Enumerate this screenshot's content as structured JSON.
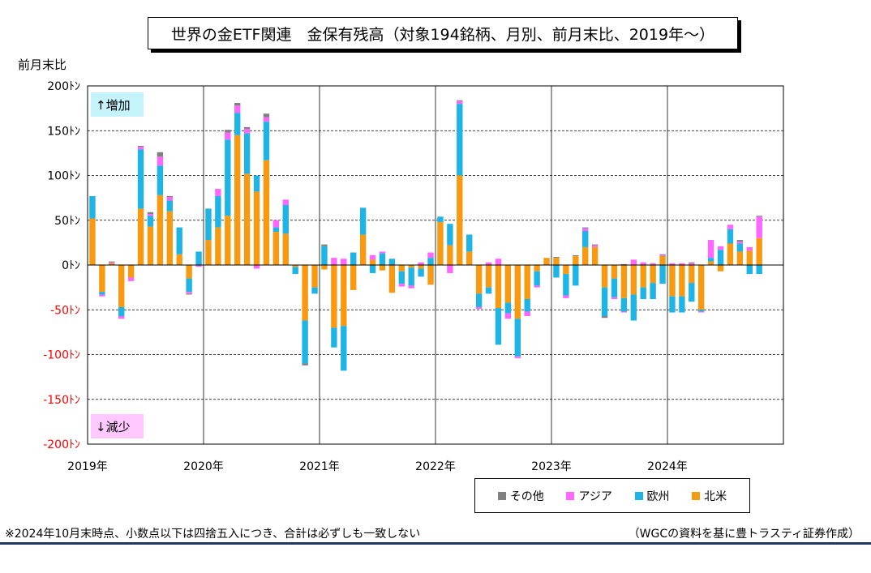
{
  "header": {
    "title": "世界の金ETF関連　金保有残高（対象194銘柄、月別、前月末比、2019年～）",
    "unit_label": "前月末比"
  },
  "annotations": {
    "increase": "↑増加",
    "decrease": "↓減少"
  },
  "footer": {
    "note": "※2024年10月末時点、小数点以下は四捨五入につき、合計は必ずしも一致しない",
    "source": "（WGCの資料を基に豊トラスティ証券作成）"
  },
  "colors": {
    "other": "#808080",
    "asia": "#ff66ff",
    "europe": "#1fb4e6",
    "north_america": "#f79a11",
    "negative_tick": "#ff0000",
    "increase_bg": "#c5f3fb",
    "decrease_bg": "#ffc8ff"
  },
  "chart_data": {
    "type": "bar",
    "stacked": true,
    "unit": "トン",
    "ylim": [
      -200,
      200
    ],
    "yticks": [
      "200ﾄﾝ",
      "150ﾄﾝ",
      "100ﾄﾝ",
      "50ﾄﾝ",
      "0ﾄﾝ",
      "-50ﾄﾝ",
      "-100ﾄﾝ",
      "-150ﾄﾝ",
      "-200ﾄﾝ"
    ],
    "ytick_values": [
      200,
      150,
      100,
      50,
      0,
      -50,
      -100,
      -150,
      -200
    ],
    "year_labels": [
      "2019年",
      "2020年",
      "2021年",
      "2022年",
      "2023年",
      "2024年"
    ],
    "grid": true,
    "legend": [
      "その他",
      "アジア",
      "欧州",
      "北米"
    ],
    "legend_position": "bottom-right",
    "categories": [
      "2019-01",
      "2019-02",
      "2019-03",
      "2019-04",
      "2019-05",
      "2019-06",
      "2019-07",
      "2019-08",
      "2019-09",
      "2019-10",
      "2019-11",
      "2019-12",
      "2020-01",
      "2020-02",
      "2020-03",
      "2020-04",
      "2020-05",
      "2020-06",
      "2020-07",
      "2020-08",
      "2020-09",
      "2020-10",
      "2020-11",
      "2020-12",
      "2021-01",
      "2021-02",
      "2021-03",
      "2021-04",
      "2021-05",
      "2021-06",
      "2021-07",
      "2021-08",
      "2021-09",
      "2021-10",
      "2021-11",
      "2021-12",
      "2022-01",
      "2022-02",
      "2022-03",
      "2022-04",
      "2022-05",
      "2022-06",
      "2022-07",
      "2022-08",
      "2022-09",
      "2022-10",
      "2022-11",
      "2022-12",
      "2023-01",
      "2023-02",
      "2023-03",
      "2023-04",
      "2023-05",
      "2023-06",
      "2023-07",
      "2023-08",
      "2023-09",
      "2023-10",
      "2023-11",
      "2023-12",
      "2024-01",
      "2024-02",
      "2024-03",
      "2024-04",
      "2024-05",
      "2024-06",
      "2024-07",
      "2024-08",
      "2024-09",
      "2024-10"
    ],
    "series": [
      {
        "name": "北米",
        "values": [
          52,
          -30,
          2,
          -47,
          -14,
          63,
          43,
          78,
          60,
          12,
          -15,
          0,
          28,
          42,
          55,
          145,
          102,
          82,
          117,
          37,
          35,
          -2,
          -62,
          -25,
          -5,
          -70,
          -68,
          -28,
          34,
          6,
          -6,
          -31,
          -7,
          -3,
          -4,
          -22,
          48,
          22,
          100,
          15,
          -32,
          -25,
          -48,
          -42,
          -60,
          -38,
          -7,
          8,
          8,
          -10,
          10,
          20,
          20,
          -25,
          -15,
          -37,
          -33,
          -25,
          -20,
          10,
          -35,
          -35,
          -20,
          -50,
          4,
          -7,
          24,
          15,
          16,
          30
        ]
      },
      {
        "name": "欧州",
        "values": [
          25,
          -3,
          0,
          -10,
          0,
          66,
          12,
          33,
          12,
          30,
          -15,
          15,
          35,
          35,
          85,
          25,
          45,
          18,
          43,
          5,
          32,
          -8,
          -48,
          -7,
          21,
          -22,
          -50,
          14,
          30,
          -9,
          13,
          7,
          -14,
          -20,
          -9,
          8,
          6,
          24,
          80,
          19,
          -15,
          -7,
          -41,
          -12,
          -42,
          -14,
          -16,
          0,
          -14,
          -24,
          -23,
          18,
          0,
          -32,
          -21,
          -15,
          -29,
          -13,
          -18,
          -21,
          -18,
          -18,
          -21,
          -2,
          4,
          17,
          16,
          9,
          -10,
          -10
        ]
      },
      {
        "name": "アジア",
        "values": [
          0,
          -2,
          1,
          -3,
          -4,
          3,
          2,
          10,
          4,
          0,
          -2,
          -2,
          0,
          8,
          8,
          8,
          5,
          -4,
          5,
          8,
          6,
          0,
          0,
          0,
          0,
          8,
          7,
          0,
          0,
          5,
          2,
          0,
          -3,
          -3,
          3,
          6,
          0,
          -9,
          3,
          0,
          -2,
          3,
          7,
          -6,
          -2,
          -5,
          -2,
          0,
          0,
          -3,
          0,
          3,
          2,
          0,
          -2,
          -1,
          6,
          3,
          2,
          1,
          2,
          2,
          2,
          -1,
          20,
          4,
          5,
          2,
          4,
          24
        ]
      },
      {
        "name": "その他",
        "values": [
          0,
          0,
          1,
          0,
          0,
          1,
          2,
          5,
          1,
          0,
          -1,
          0,
          0,
          0,
          3,
          3,
          2,
          0,
          4,
          0,
          0,
          0,
          -2,
          0,
          2,
          0,
          0,
          0,
          0,
          0,
          0,
          0,
          0,
          0,
          0,
          0,
          0,
          0,
          1,
          0,
          0,
          0,
          0,
          0,
          0,
          0,
          0,
          0,
          1,
          0,
          1,
          1,
          1,
          -2,
          0,
          1,
          0,
          0,
          0,
          1,
          0,
          0,
          1,
          0,
          0,
          0,
          0,
          2,
          0,
          1
        ]
      }
    ]
  }
}
